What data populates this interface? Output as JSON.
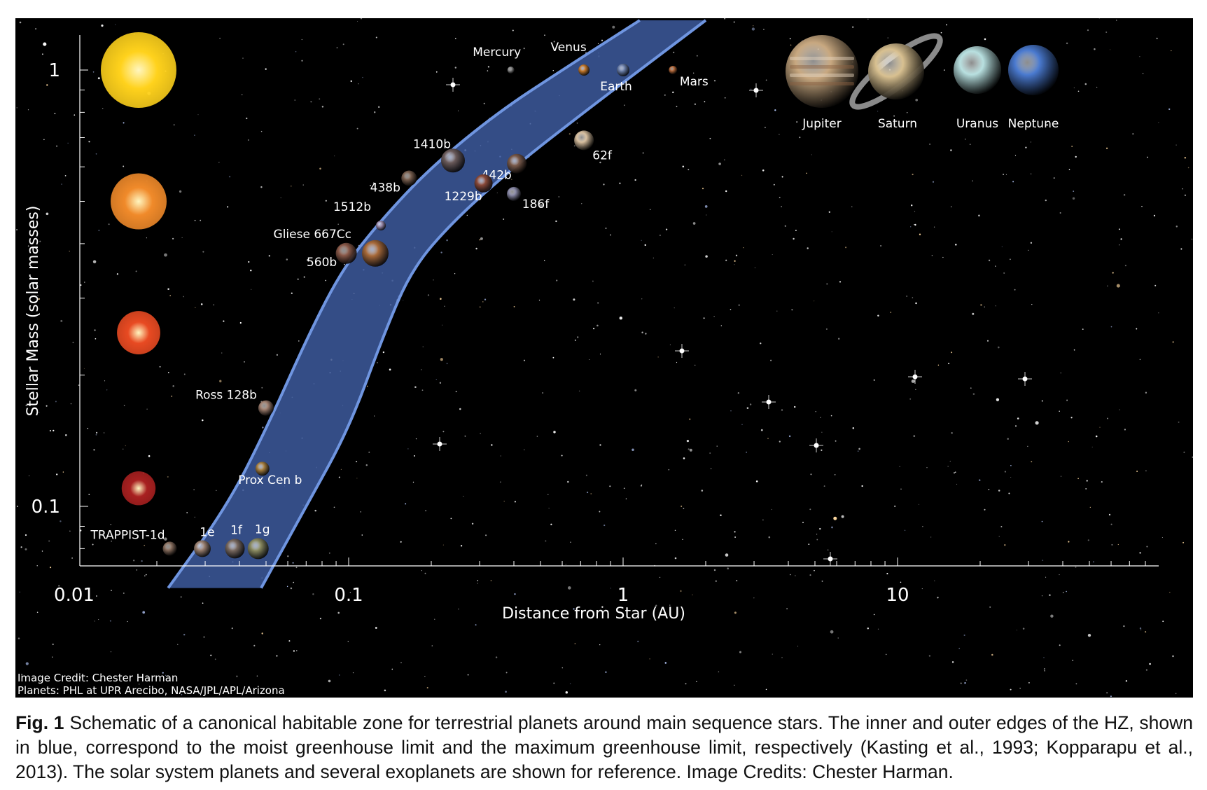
{
  "chart_data": {
    "type": "scatter",
    "xscale": "log",
    "yscale": "log",
    "xlim": [
      0.01,
      50
    ],
    "ylim": [
      0.065,
      1.3
    ],
    "xlabel": "Distance from Star (AU)",
    "ylabel": "Stellar Mass (solar masses)",
    "xticks": [
      {
        "value": 0.01,
        "label": "0.01"
      },
      {
        "value": 0.1,
        "label": "0.1"
      },
      {
        "value": 1,
        "label": "1"
      },
      {
        "value": 10,
        "label": "10"
      }
    ],
    "yticks": [
      {
        "value": 0.1,
        "label": "0.1"
      },
      {
        "value": 1,
        "label": "1"
      }
    ],
    "habitable_zone": {
      "inner_edge": [
        [
          0.022,
          0.065
        ],
        [
          0.036,
          0.1
        ],
        [
          0.05,
          0.15
        ],
        [
          0.072,
          0.25
        ],
        [
          0.095,
          0.35
        ],
        [
          0.13,
          0.45
        ],
        [
          0.2,
          0.6
        ],
        [
          0.35,
          0.8
        ],
        [
          0.6,
          1.0
        ],
        [
          1.15,
          1.3
        ]
      ],
      "outer_edge": [
        [
          0.048,
          0.065
        ],
        [
          0.07,
          0.1
        ],
        [
          0.1,
          0.15
        ],
        [
          0.135,
          0.25
        ],
        [
          0.17,
          0.35
        ],
        [
          0.24,
          0.45
        ],
        [
          0.4,
          0.6
        ],
        [
          0.72,
          0.8
        ],
        [
          1.15,
          1.0
        ],
        [
          2.0,
          1.3
        ]
      ],
      "color": "#3d5b9e",
      "edge_color": "#6f95e0"
    },
    "stars": [
      {
        "mass": 1.0,
        "color": "#ffd21c"
      },
      {
        "mass": 0.5,
        "color": "#f08a2a"
      },
      {
        "mass": 0.25,
        "color": "#e84a22"
      },
      {
        "mass": 0.11,
        "color": "#a82020"
      }
    ],
    "planets": [
      {
        "label": "Mercury",
        "x": 0.39,
        "y": 1.0,
        "color": "#8a8a8a"
      },
      {
        "label": "Venus",
        "x": 0.72,
        "y": 1.0,
        "color": "#c87a2a"
      },
      {
        "label": "Earth",
        "x": 1.0,
        "y": 1.0,
        "color": "#6a7ea8"
      },
      {
        "label": "Mars",
        "x": 1.52,
        "y": 1.0,
        "color": "#b86a3a"
      },
      {
        "label": "62f",
        "x": 0.72,
        "y": 0.69,
        "color": "#d8c0a0"
      },
      {
        "label": "1410b",
        "x": 0.24,
        "y": 0.62,
        "color": "#6a5a5a"
      },
      {
        "label": "442b",
        "x": 0.41,
        "y": 0.61,
        "color": "#7a5a4a"
      },
      {
        "label": "1229b",
        "x": 0.31,
        "y": 0.55,
        "color": "#8a4a3a"
      },
      {
        "label": "438b",
        "x": 0.166,
        "y": 0.565,
        "color": "#7a6050"
      },
      {
        "label": "186f",
        "x": 0.4,
        "y": 0.52,
        "color": "#8a8aa8"
      },
      {
        "label": "1512b",
        "x": 0.131,
        "y": 0.44,
        "color": "#9a8aaa"
      },
      {
        "label": "Gliese 667Cc",
        "x": 0.125,
        "y": 0.38,
        "color": "#a86a3a"
      },
      {
        "label": "560b",
        "x": 0.098,
        "y": 0.38,
        "color": "#8a5a4a"
      },
      {
        "label": "Ross 128b",
        "x": 0.05,
        "y": 0.168,
        "color": "#a08070"
      },
      {
        "label": "Prox Cen b",
        "x": 0.0485,
        "y": 0.122,
        "color": "#a88040"
      },
      {
        "label": "TRAPPIST-1d",
        "x": 0.0223,
        "y": 0.08,
        "color": "#8a7060"
      },
      {
        "label": "1e",
        "x": 0.0293,
        "y": 0.08,
        "color": "#9a8070"
      },
      {
        "label": "1f",
        "x": 0.0385,
        "y": 0.08,
        "color": "#7a6a60"
      },
      {
        "label": "1g",
        "x": 0.0468,
        "y": 0.08,
        "color": "#8a8a60"
      }
    ],
    "giants": [
      {
        "label": "Jupiter",
        "color": "#c8a880"
      },
      {
        "label": "Saturn",
        "color": "#d8c090"
      },
      {
        "label": "Uranus",
        "color": "#b8e0e0"
      },
      {
        "label": "Neptune",
        "color": "#4a7ad0"
      }
    ]
  },
  "credits": {
    "line1": "Image Credit: Chester Harman",
    "line2": "Planets: PHL at UPR Arecibo, NASA/JPL/APL/Arizona"
  },
  "caption": {
    "label": "Fig. 1",
    "text": "Schematic of a canonical habitable zone for terrestrial planets around main sequence stars. The inner and outer edges of the HZ, shown in blue, correspond to the moist greenhouse limit and the maximum greenhouse limit, respectively (Kasting et al., 1993; Kopparapu et al., 2013). The solar system planets and several exoplanets are shown for reference. Image Credits: Chester Harman."
  }
}
